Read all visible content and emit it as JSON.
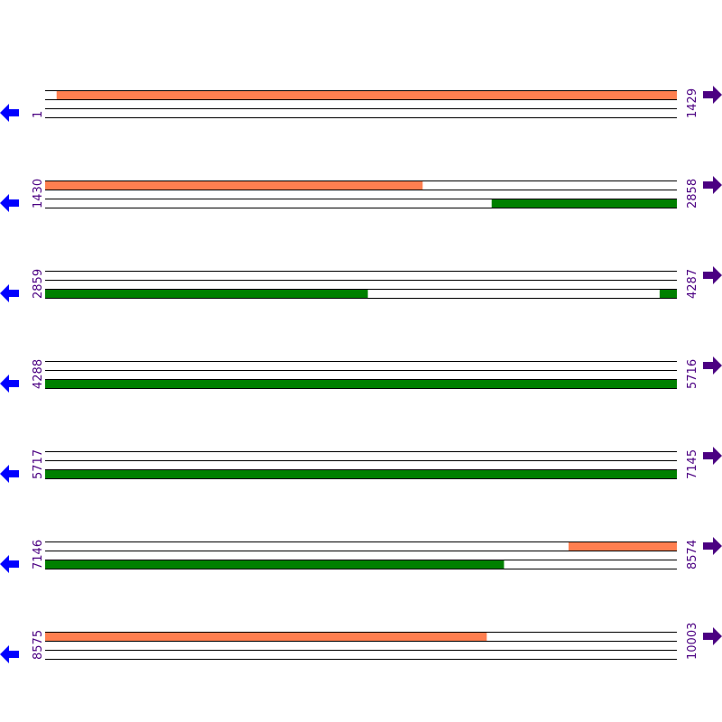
{
  "rows": [
    {
      "start": "1",
      "end": "1429"
    },
    {
      "start": "1430",
      "end": "2858"
    },
    {
      "start": "2859",
      "end": "4287"
    },
    {
      "start": "4288",
      "end": "5716"
    },
    {
      "start": "5717",
      "end": "7145"
    },
    {
      "start": "7146",
      "end": "8574"
    },
    {
      "start": "8575",
      "end": "10003"
    }
  ],
  "positions_per_row": 1429,
  "forward_features": [
    [
      27,
      2283
    ],
    [
      8330,
      9573
    ]
  ],
  "reverse_features": [
    [
      2440,
      3588
    ],
    [
      4249,
      8183
    ]
  ],
  "colors": {
    "forward": "#ff7f50",
    "reverse": "#008000",
    "label": "#4b0082",
    "left_arrow": "#0000ff",
    "right_arrow": "#4b0082",
    "line": "#000000"
  },
  "icons": {
    "left": "arrow-left-icon",
    "right": "arrow-right-icon"
  }
}
